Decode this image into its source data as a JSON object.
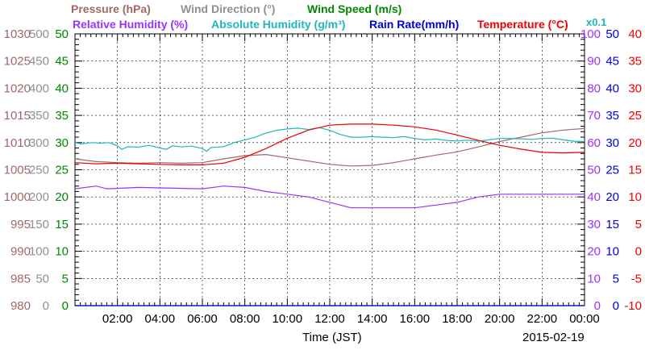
{
  "legend": {
    "row1": [
      {
        "label": "Pressure (hPa)",
        "color": "#a06868"
      },
      {
        "label": "Wind Direction (°)",
        "color": "#909090"
      },
      {
        "label": "Wind Speed (m/s)",
        "color": "#008800"
      }
    ],
    "row2": [
      {
        "label": "Relative Humidity (%)",
        "color": "#9a33ff"
      },
      {
        "label": "Absolute Humidity (g/m³)",
        "color": "#20b8b8"
      },
      {
        "label": "Rain Rate(mm/h)",
        "color": "#0000dd"
      },
      {
        "label": "Temperature (°C)",
        "color": "#ee0000"
      }
    ],
    "multiplier": "x0.1"
  },
  "footer": {
    "xlabel": "Time (JST)",
    "date": "2015-02-19"
  },
  "chart_data": {
    "type": "line",
    "x_unit": "hour",
    "x_range": [
      0,
      24
    ],
    "x_ticks": [
      "02:00",
      "04:00",
      "06:00",
      "08:00",
      "10:00",
      "12:00",
      "14:00",
      "16:00",
      "18:00",
      "20:00",
      "22:00",
      "00:00"
    ],
    "grid": true,
    "axes": {
      "pressure": {
        "range": [
          980,
          1030
        ],
        "ticks": [
          "1030",
          "1025",
          "1020",
          "1015",
          "1010",
          "1005",
          "1000",
          "995",
          "990",
          "985",
          "980"
        ],
        "color": "#a06868"
      },
      "wind_direction": {
        "range": [
          0,
          500
        ],
        "ticks": [
          "500",
          "450",
          "400",
          "350",
          "300",
          "250",
          "200",
          "150",
          "100",
          "50",
          "0"
        ],
        "color": "#909090"
      },
      "wind_speed": {
        "range": [
          0,
          50
        ],
        "ticks": [
          "50",
          "45",
          "40",
          "35",
          "30",
          "25",
          "20",
          "15",
          "10",
          "5",
          "0"
        ],
        "color": "#008800"
      },
      "relative_humidity": {
        "range": [
          0,
          100
        ],
        "ticks": [
          "100",
          "90",
          "80",
          "70",
          "60",
          "50",
          "40",
          "30",
          "20",
          "10",
          "0"
        ],
        "color": "#9a33ff"
      },
      "rain_rate": {
        "range": [
          0,
          50
        ],
        "ticks": [
          "50",
          "45",
          "40",
          "35",
          "30",
          "25",
          "20",
          "15",
          "10",
          "5",
          "0"
        ],
        "color": "#0000dd"
      },
      "temperature": {
        "range": [
          -10,
          40
        ],
        "ticks": [
          "40",
          "35",
          "30",
          "25",
          "20",
          "15",
          "10",
          "5",
          "0",
          "-5",
          "-10"
        ],
        "color": "#ee0000"
      }
    },
    "series": [
      {
        "name": "Pressure (hPa)",
        "axis": "pressure",
        "color": "#a06868",
        "points": [
          [
            0,
            1007
          ],
          [
            1,
            1006.5
          ],
          [
            2,
            1006.3
          ],
          [
            3,
            1006.2
          ],
          [
            4,
            1006.3
          ],
          [
            5,
            1006.2
          ],
          [
            6,
            1006.3
          ],
          [
            7,
            1007
          ],
          [
            8,
            1007.6
          ],
          [
            9,
            1007.8
          ],
          [
            10,
            1007.2
          ],
          [
            11,
            1006.6
          ],
          [
            12,
            1006
          ],
          [
            13,
            1005.7
          ],
          [
            14,
            1005.8
          ],
          [
            15,
            1006.3
          ],
          [
            16,
            1007
          ],
          [
            17,
            1007.7
          ],
          [
            18,
            1008.3
          ],
          [
            19,
            1009.2
          ],
          [
            20,
            1010.2
          ],
          [
            21,
            1011
          ],
          [
            22,
            1011.8
          ],
          [
            23,
            1012.3
          ],
          [
            24,
            1012.6
          ]
        ]
      },
      {
        "name": "Absolute Humidity (g/m³) x0.1",
        "axis": "relative_humidity",
        "color": "#20b8b8",
        "points": [
          [
            0,
            60
          ],
          [
            0.3,
            59.5
          ],
          [
            0.8,
            60
          ],
          [
            1.2,
            59.8
          ],
          [
            1.6,
            60
          ],
          [
            2,
            58.8
          ],
          [
            2.2,
            57.5
          ],
          [
            2.5,
            58.5
          ],
          [
            3,
            58.3
          ],
          [
            3.5,
            59
          ],
          [
            4,
            58
          ],
          [
            4.3,
            57.5
          ],
          [
            4.6,
            58.8
          ],
          [
            5,
            58.4
          ],
          [
            5.5,
            58.7
          ],
          [
            6,
            57.8
          ],
          [
            6.2,
            56.8
          ],
          [
            6.4,
            58.2
          ],
          [
            7,
            58.5
          ],
          [
            7.5,
            60
          ],
          [
            8,
            61
          ],
          [
            8.5,
            62
          ],
          [
            9,
            63.5
          ],
          [
            9.5,
            64.5
          ],
          [
            10,
            65
          ],
          [
            10.5,
            65.3
          ],
          [
            11,
            64.8
          ],
          [
            11.5,
            65.5
          ],
          [
            12,
            64.5
          ],
          [
            12.5,
            63
          ],
          [
            13,
            62
          ],
          [
            13.5,
            62
          ],
          [
            14,
            62.2
          ],
          [
            14.5,
            62
          ],
          [
            15,
            61.8
          ],
          [
            15.5,
            62.2
          ],
          [
            16,
            61.5
          ],
          [
            16.5,
            61
          ],
          [
            17,
            61.3
          ],
          [
            17.5,
            60.8
          ],
          [
            18,
            60.6
          ],
          [
            18.5,
            60.9
          ],
          [
            19,
            60.5
          ],
          [
            19.5,
            61
          ],
          [
            20,
            61.5
          ],
          [
            20.5,
            61.5
          ],
          [
            21,
            61.4
          ],
          [
            21.5,
            61.2
          ],
          [
            22,
            61.5
          ],
          [
            22.5,
            61.6
          ],
          [
            23,
            61
          ],
          [
            23.5,
            60.5
          ],
          [
            24,
            60.4
          ]
        ]
      },
      {
        "name": "Temperature (°C)",
        "axis": "temperature",
        "color": "#ee0000",
        "points": [
          [
            0,
            16.3
          ],
          [
            1,
            16.1
          ],
          [
            2,
            16.2
          ],
          [
            3,
            16.1
          ],
          [
            4,
            16
          ],
          [
            5,
            15.9
          ],
          [
            6,
            15.9
          ],
          [
            7,
            16.2
          ],
          [
            8,
            17.3
          ],
          [
            9,
            18.9
          ],
          [
            10,
            20.8
          ],
          [
            11,
            22.3
          ],
          [
            12,
            23.2
          ],
          [
            13,
            23.4
          ],
          [
            14,
            23.4
          ],
          [
            15,
            23.2
          ],
          [
            16,
            22.9
          ],
          [
            17,
            22.3
          ],
          [
            18,
            21.4
          ],
          [
            19,
            20.4
          ],
          [
            20,
            19.5
          ],
          [
            21,
            18.8
          ],
          [
            22,
            18.2
          ],
          [
            23,
            18.1
          ],
          [
            24,
            18.2
          ]
        ]
      },
      {
        "name": "Relative Humidity (%)",
        "axis": "relative_humidity",
        "color": "#9a33ff",
        "points": [
          [
            0,
            43
          ],
          [
            1,
            44
          ],
          [
            1.5,
            43
          ],
          [
            3,
            43.5
          ],
          [
            6,
            43
          ],
          [
            7,
            44
          ],
          [
            8,
            43.5
          ],
          [
            9,
            42
          ],
          [
            10,
            41
          ],
          [
            11,
            40
          ],
          [
            12,
            38
          ],
          [
            13,
            36
          ],
          [
            16,
            36
          ],
          [
            17,
            37
          ],
          [
            18,
            38
          ],
          [
            19,
            40
          ],
          [
            20,
            41
          ],
          [
            22,
            41
          ],
          [
            24,
            41
          ]
        ]
      },
      {
        "name": "Wind Speed (m/s)",
        "axis": "wind_speed",
        "color": "#008800",
        "points": [
          [
            0,
            0
          ],
          [
            24,
            0
          ]
        ]
      },
      {
        "name": "Rain Rate(mm/h)",
        "axis": "rain_rate",
        "color": "#0000dd",
        "points": [
          [
            0,
            0
          ],
          [
            24,
            0
          ]
        ]
      }
    ]
  }
}
